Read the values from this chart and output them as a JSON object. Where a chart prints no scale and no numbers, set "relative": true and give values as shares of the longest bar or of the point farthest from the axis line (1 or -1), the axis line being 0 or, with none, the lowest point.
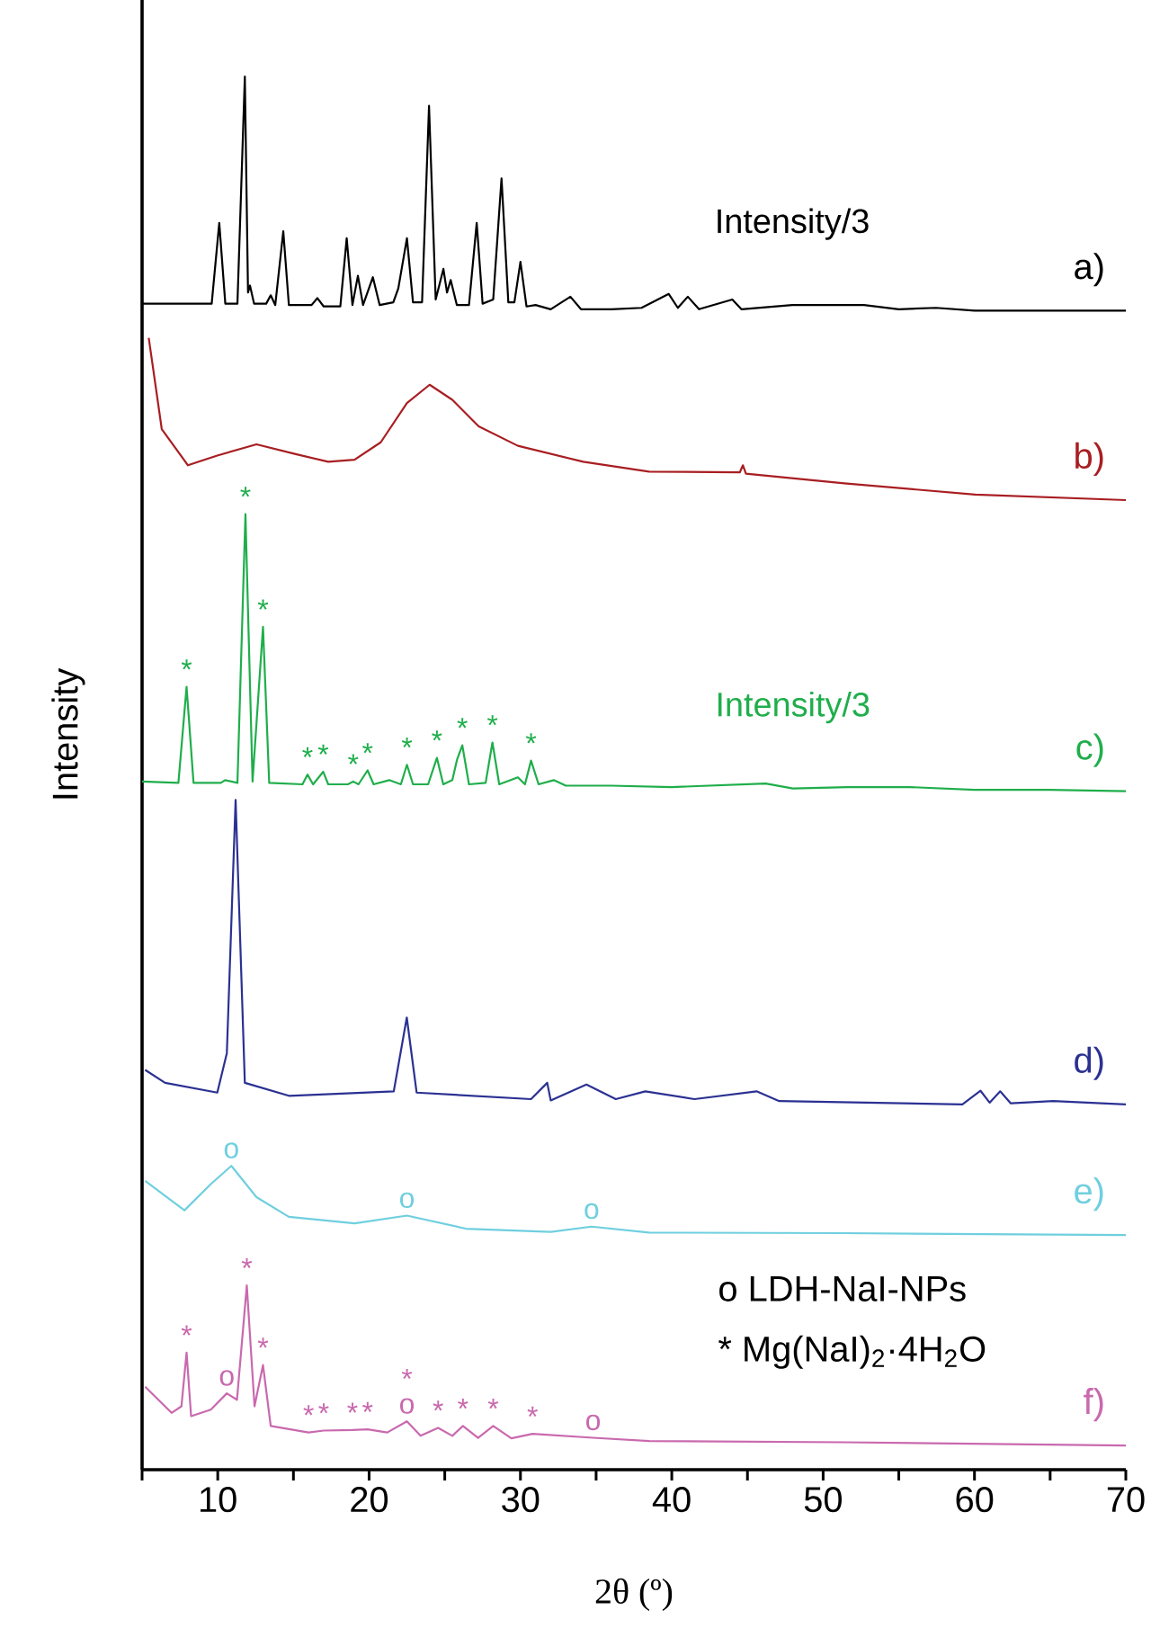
{
  "chart_data": {
    "type": "line",
    "relative": true,
    "xlabel": "2θ (º)",
    "ylabel": "Intensity",
    "xlim": [
      5,
      70
    ],
    "xticks": [
      {
        "value": 5,
        "label": null
      },
      10,
      {
        "value": 15,
        "label": null
      },
      20,
      {
        "value": 25,
        "label": null
      },
      30,
      {
        "value": 35,
        "label": null
      },
      40,
      {
        "value": 45,
        "label": null
      },
      50,
      {
        "value": 55,
        "label": null
      },
      60,
      {
        "value": 65,
        "label": null
      },
      70
    ],
    "series": [
      {
        "name": "a)",
        "color": "#000000",
        "x": [
          5,
          8,
          9.6,
          10.1,
          10.5,
          11.3,
          11.79,
          12.0,
          12.13,
          12.4,
          13.2,
          13.5,
          13.8,
          14.33,
          14.7,
          16.2,
          16.58,
          17,
          18.1,
          18.52,
          18.9,
          19.26,
          19.6,
          20.25,
          20.7,
          21.6,
          21.93,
          22.5,
          22.9,
          23.5,
          23.96,
          24.4,
          24.91,
          25.15,
          25.39,
          25.8,
          26.6,
          27.11,
          27.5,
          28.2,
          28.75,
          29.2,
          29.6,
          30.0,
          30.4,
          31,
          32,
          33.3,
          34,
          36,
          38,
          39.8,
          40.4,
          41.06,
          41.8,
          44.0,
          44.6,
          47.96,
          52.7,
          55,
          57.46,
          60,
          65,
          70
        ],
        "values": [
          0.837,
          0.837,
          0.837,
          0.895,
          0.837,
          0.837,
          1.0,
          0.845,
          0.85,
          0.837,
          0.837,
          0.843,
          0.836,
          0.889,
          0.836,
          0.836,
          0.841,
          0.835,
          0.835,
          0.884,
          0.836,
          0.857,
          0.836,
          0.856,
          0.836,
          0.838,
          0.848,
          0.884,
          0.838,
          0.838,
          0.979,
          0.84,
          0.862,
          0.845,
          0.854,
          0.836,
          0.836,
          0.895,
          0.837,
          0.84,
          0.927,
          0.838,
          0.838,
          0.867,
          0.835,
          0.836,
          0.833,
          0.842,
          0.833,
          0.833,
          0.834,
          0.844,
          0.834,
          0.842,
          0.833,
          0.84,
          0.833,
          0.836,
          0.836,
          0.833,
          0.834,
          0.832,
          0.832,
          0.832
        ]
      },
      {
        "name": "b)",
        "color": "#a81e22",
        "x": [
          5.44,
          6.3,
          8.03,
          9.97,
          12.56,
          15.15,
          17.3,
          19.04,
          20.77,
          22.5,
          24.0,
          25.5,
          27.24,
          29.83,
          34.15,
          38.5,
          44.5,
          44.7,
          44.9,
          51.4,
          60.05,
          70
        ],
        "values": [
          0.8125,
          0.747,
          0.721,
          0.728,
          0.736,
          0.729,
          0.7235,
          0.725,
          0.7375,
          0.7657,
          0.7788,
          0.768,
          0.749,
          0.735,
          0.7235,
          0.7164,
          0.716,
          0.721,
          0.715,
          0.708,
          0.7,
          0.696
        ]
      },
      {
        "name": "c)",
        "color": "#1fae4b",
        "x": [
          5,
          7.4,
          7.94,
          8.4,
          10.2,
          10.49,
          11.3,
          11.83,
          12.3,
          12.99,
          13.4,
          15.6,
          15.93,
          16.3,
          16.97,
          17.3,
          18.6,
          18.95,
          19.3,
          19.9,
          20.3,
          21.33,
          22.1,
          22.5,
          22.9,
          23.9,
          24.48,
          24.9,
          25.5,
          25.82,
          26.16,
          26.6,
          27.7,
          28.15,
          28.6,
          29.83,
          30.3,
          30.7,
          31.2,
          32.2,
          33,
          36,
          40,
          46.2,
          48,
          51.6,
          55.7,
          60,
          65,
          70
        ],
        "values": [
          0.494,
          0.493,
          0.562,
          0.493,
          0.493,
          0.495,
          0.493,
          0.686,
          0.494,
          0.605,
          0.493,
          0.492,
          0.499,
          0.492,
          0.501,
          0.492,
          0.492,
          0.494,
          0.492,
          0.502,
          0.492,
          0.495,
          0.492,
          0.506,
          0.492,
          0.492,
          0.511,
          0.492,
          0.495,
          0.51,
          0.52,
          0.492,
          0.493,
          0.522,
          0.492,
          0.497,
          0.492,
          0.509,
          0.492,
          0.495,
          0.491,
          0.491,
          0.49,
          0.4925,
          0.489,
          0.49,
          0.49,
          0.488,
          0.488,
          0.487
        ]
      },
      {
        "name": "d)",
        "color": "#2b3192",
        "x": [
          5.2,
          6.52,
          9.97,
          10.6,
          11.18,
          11.79,
          14.7,
          21.63,
          22.49,
          23.14,
          30.7,
          31.77,
          32.0,
          34.36,
          36.3,
          38.25,
          41.5,
          45.6,
          47.1,
          59.2,
          60.4,
          61.0,
          61.7,
          62.4,
          65.2,
          70
        ],
        "values": [
          0.287,
          0.2777,
          0.2707,
          0.299,
          0.4808,
          0.2777,
          0.2684,
          0.2716,
          0.3246,
          0.2707,
          0.266,
          0.2777,
          0.2651,
          0.2765,
          0.266,
          0.2716,
          0.266,
          0.2716,
          0.2646,
          0.2622,
          0.272,
          0.2635,
          0.2716,
          0.263,
          0.2646,
          0.2622
        ]
      },
      {
        "name": "e)",
        "color": "#6fcfdf",
        "x": [
          5.2,
          7.8,
          9.54,
          10.9,
          12.56,
          14.7,
          19.04,
          22.5,
          26.4,
          32.0,
          34.7,
          38.5,
          51.4,
          70
        ],
        "values": [
          0.2073,
          0.1862,
          0.205,
          0.2181,
          0.1956,
          0.1815,
          0.1768,
          0.1824,
          0.173,
          0.1707,
          0.1745,
          0.1702,
          0.1698,
          0.1684
        ]
      },
      {
        "name": "f)",
        "color": "#c969ae",
        "x": [
          5.2,
          6.95,
          7.6,
          7.94,
          8.24,
          9.54,
          10.6,
          11.27,
          11.92,
          12.43,
          12.99,
          13.5,
          16.0,
          17,
          18.9,
          19.9,
          21.2,
          22.5,
          23.4,
          24.56,
          25.5,
          26.2,
          27.2,
          28.2,
          29.4,
          30.8,
          34.8,
          38.5,
          51.4,
          70
        ],
        "values": [
          0.0596,
          0.0408,
          0.0455,
          0.084,
          0.0384,
          0.0431,
          0.0548,
          0.0502,
          0.1323,
          0.0455,
          0.0751,
          0.0314,
          0.0267,
          0.0281,
          0.0285,
          0.029,
          0.0267,
          0.0347,
          0.0243,
          0.03,
          0.0243,
          0.0314,
          0.0229,
          0.0314,
          0.0225,
          0.0257,
          0.0229,
          0.0206,
          0.0197,
          0.0173
        ]
      }
    ],
    "annotations": [
      {
        "text": "Intensity/3",
        "x": 47.96,
        "y": 0.836
      },
      {
        "text": "Intensity/3",
        "x": 48,
        "y": 0.489
      },
      {
        "text": "*",
        "x": 7.94,
        "y": 0.562
      },
      {
        "text": "*",
        "x": 11.83,
        "y": 0.686
      },
      {
        "text": "*",
        "x": 12.99,
        "y": 0.605
      },
      {
        "text": "*",
        "x": 15.93,
        "y": 0.499
      },
      {
        "text": "*",
        "x": 16.97,
        "y": 0.501
      },
      {
        "text": "*",
        "x": 18.95,
        "y": 0.494
      },
      {
        "text": "*",
        "x": 19.9,
        "y": 0.502
      },
      {
        "text": "*",
        "x": 22.5,
        "y": 0.506
      },
      {
        "text": "*",
        "x": 24.48,
        "y": 0.511
      },
      {
        "text": "*",
        "x": 26.16,
        "y": 0.52
      },
      {
        "text": "*",
        "x": 28.15,
        "y": 0.522
      },
      {
        "text": "*",
        "x": 30.7,
        "y": 0.509
      },
      {
        "text": "o",
        "x": 10.9,
        "y": 0.2181
      },
      {
        "text": "o",
        "x": 22.5,
        "y": 0.1824
      },
      {
        "text": "o",
        "x": 34.7,
        "y": 0.1745
      },
      {
        "text": "*",
        "x": 7.94,
        "y": 0.084
      },
      {
        "text": "o",
        "x": 10.6,
        "y": 0.0548
      },
      {
        "text": "*",
        "x": 11.92,
        "y": 0.1323
      },
      {
        "text": "*",
        "x": 12.99,
        "y": 0.0751
      },
      {
        "text": "*",
        "x": 16.0,
        "y": 0.0267
      },
      {
        "text": "*",
        "x": 17,
        "y": 0.0281
      },
      {
        "text": "*",
        "x": 18.9,
        "y": 0.0285
      },
      {
        "text": "*",
        "x": 19.9,
        "y": 0.029
      },
      {
        "text": "o",
        "x": 22.5,
        "y": 0.0347
      },
      {
        "text": "*",
        "x": 22.5,
        "y": 0.0347
      },
      {
        "text": "*",
        "x": 24.56,
        "y": 0.03
      },
      {
        "text": "*",
        "x": 26.2,
        "y": 0.0314
      },
      {
        "text": "*",
        "x": 28.2,
        "y": 0.0314
      },
      {
        "text": "*",
        "x": 30.8,
        "y": 0.0257
      },
      {
        "text": "o",
        "x": 34.8,
        "y": 0.0229
      },
      "o  LDH-NaI-NPs",
      "*  Mg(NaI)$_{2}$·4H$_{2}$O"
    ]
  }
}
